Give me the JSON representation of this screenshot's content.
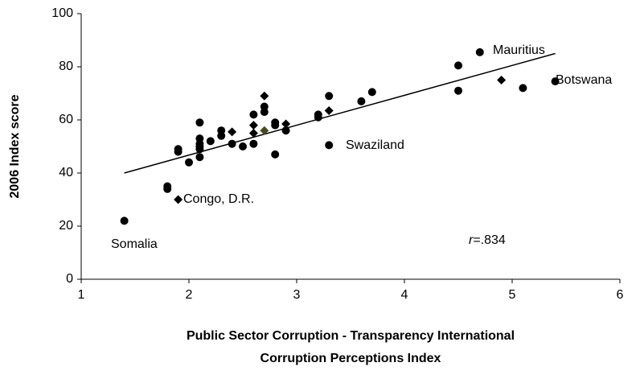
{
  "chart_data": {
    "type": "scatter",
    "x_label": [
      "Public Sector Corruption - Transparency International",
      "Corruption Perceptions Index"
    ],
    "y_label": "2006 Index score",
    "xlim": [
      1,
      6
    ],
    "xticks": [
      1,
      2,
      3,
      4,
      5,
      6
    ],
    "ylim": [
      0,
      100
    ],
    "yticks": [
      0,
      20,
      40,
      60,
      80,
      100
    ],
    "grid": false,
    "series": [
      {
        "marker": "circle",
        "color": "#000000",
        "x": [
          1.4,
          1.8,
          1.8,
          1.9,
          1.9,
          2.0,
          2.1,
          2.1,
          2.1,
          2.1,
          2.1,
          2.2,
          2.3,
          2.3,
          2.4,
          2.5,
          2.6,
          2.6,
          2.7,
          2.7,
          2.8,
          2.8,
          2.8,
          2.9,
          3.2,
          3.2,
          3.3,
          3.3,
          3.6,
          3.7,
          4.5,
          4.5,
          4.7,
          5.1,
          5.4
        ],
        "values": [
          22,
          35,
          34,
          49,
          48,
          44,
          59,
          53,
          51,
          49,
          46,
          52,
          56,
          54,
          51,
          50,
          62,
          51,
          65,
          63,
          59,
          58,
          47,
          56,
          62,
          61,
          69,
          50.5,
          67,
          70.5,
          80.5,
          71,
          85.5,
          72,
          74.5
        ]
      },
      {
        "marker": "diamond",
        "color": "#000000",
        "x": [
          1.9,
          2.1,
          2.4,
          2.6,
          2.6,
          2.7,
          2.9,
          3.3,
          4.9
        ],
        "values": [
          30,
          50,
          55.5,
          58,
          55,
          69,
          58.5,
          63.5,
          75
        ]
      },
      {
        "marker": "diamond",
        "color": "#4a4a22",
        "x": [
          2.7
        ],
        "values": [
          56
        ]
      }
    ],
    "trendline": {
      "x": [
        1.4,
        5.4
      ],
      "values": [
        40,
        85
      ]
    },
    "annotations": [
      "Somalia",
      "Congo, D.R.",
      "Swaziland",
      "Mauritius",
      "Botswana"
    ],
    "stat_label": {
      "symbol": "r",
      "text": "=.834"
    }
  }
}
